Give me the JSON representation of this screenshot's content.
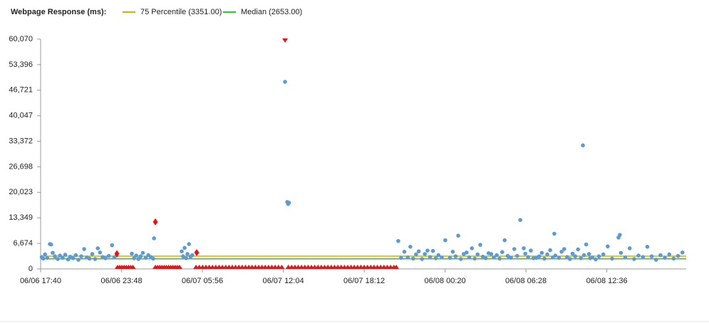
{
  "chart_data": {
    "type": "scatter",
    "title": "Webpage Response (ms):",
    "reference_lines": [
      {
        "label": "75 Percentile (3351.00)",
        "value": 3351,
        "color": "#c9b800"
      },
      {
        "label": "Median (2653.00)",
        "value": 2653,
        "color": "#2ec72e"
      }
    ],
    "xlim": [
      "06/06 17:40",
      "06/08 18:37"
    ],
    "xticks": [
      "06/06 17:40",
      "06/06 23:48",
      "06/07 05:56",
      "06/07 12:04",
      "06/07 18:12",
      "06/08 00:20",
      "06/08 06:28",
      "06/08 12:36"
    ],
    "ylim": [
      0,
      60070
    ],
    "yticks": [
      0,
      {
        "value": 6674,
        "label": "6,674"
      },
      {
        "value": 13349,
        "label": "13,349"
      },
      {
        "value": 20023,
        "label": "20,023"
      },
      {
        "value": 26698,
        "label": "26,698"
      },
      {
        "value": 33372,
        "label": "33,372"
      },
      {
        "value": 40047,
        "label": "40,047"
      },
      {
        "value": 46721,
        "label": "46,721"
      },
      {
        "value": 53396,
        "label": "53,396"
      },
      {
        "value": 60070,
        "label": "60,070"
      }
    ],
    "series": [
      {
        "color": "#5b9bd5",
        "marker": "circle",
        "x": [
          "06/06 17:45",
          "06/06 17:52",
          "06/06 18:00",
          "06/06 18:10",
          "06/06 18:22",
          "06/06 18:28",
          "06/06 18:35",
          "06/06 18:45",
          "06/06 18:58",
          "06/06 19:08",
          "06/06 19:20",
          "06/06 19:32",
          "06/06 19:45",
          "06/06 19:55",
          "06/06 20:08",
          "06/06 20:20",
          "06/06 20:32",
          "06/06 20:45",
          "06/06 20:58",
          "06/06 21:10",
          "06/06 21:22",
          "06/06 21:35",
          "06/06 21:48",
          "06/06 22:00",
          "06/06 22:10",
          "06/06 22:22",
          "06/06 22:35",
          "06/06 22:50",
          "06/06 23:05",
          "06/06 23:15",
          "06/06 23:25",
          "06/07 00:35",
          "06/07 00:45",
          "06/07 00:55",
          "06/07 01:05",
          "06/07 01:15",
          "06/07 01:25",
          "06/07 01:38",
          "06/07 01:50",
          "06/07 02:02",
          "06/07 02:12",
          "06/07 02:16",
          "06/07 04:22",
          "06/07 04:28",
          "06/07 04:35",
          "06/07 04:42",
          "06/07 04:48",
          "06/07 04:55",
          "06/07 05:02",
          "06/07 05:10",
          "06/07 12:12",
          "06/07 12:22",
          "06/07 12:26",
          "06/07 12:30",
          "06/07 20:47",
          "06/07 21:00",
          "06/07 21:15",
          "06/07 21:30",
          "06/07 21:42",
          "06/07 21:55",
          "06/07 22:08",
          "06/07 22:20",
          "06/07 22:35",
          "06/07 22:48",
          "06/07 23:00",
          "06/07 23:12",
          "06/07 23:25",
          "06/07 23:38",
          "06/07 23:50",
          "06/08 00:05",
          "06/08 00:21",
          "06/08 00:42",
          "06/08 00:55",
          "06/08 01:08",
          "06/08 01:20",
          "06/08 01:32",
          "06/08 01:45",
          "06/08 01:58",
          "06/08 02:10",
          "06/08 02:22",
          "06/08 02:35",
          "06/08 02:48",
          "06/08 03:00",
          "06/08 03:12",
          "06/08 03:25",
          "06/08 03:38",
          "06/08 03:50",
          "06/08 04:02",
          "06/08 04:15",
          "06/08 04:28",
          "06/08 04:40",
          "06/08 04:51",
          "06/08 05:05",
          "06/08 05:12",
          "06/08 05:20",
          "06/08 05:35",
          "06/08 05:48",
          "06/08 06:02",
          "06/08 06:18",
          "06/08 06:25",
          "06/08 06:38",
          "06/08 06:50",
          "06/08 07:02",
          "06/08 07:15",
          "06/08 07:28",
          "06/08 07:40",
          "06/08 07:52",
          "06/08 08:05",
          "06/08 08:18",
          "06/08 08:30",
          "06/08 08:37",
          "06/08 08:42",
          "06/08 08:58",
          "06/08 09:10",
          "06/08 09:22",
          "06/08 09:35",
          "06/08 09:48",
          "06/08 10:00",
          "06/08 10:12",
          "06/08 10:25",
          "06/08 10:38",
          "06/08 10:47",
          "06/08 10:52",
          "06/08 11:02",
          "06/08 11:15",
          "06/08 11:20",
          "06/08 11:30",
          "06/08 11:45",
          "06/08 12:00",
          "06/08 12:20",
          "06/08 12:40",
          "06/08 13:00",
          "06/08 13:29",
          "06/08 13:35",
          "06/08 13:40",
          "06/08 14:00",
          "06/08 14:20",
          "06/08 14:40",
          "06/08 15:00",
          "06/08 15:20",
          "06/08 15:40",
          "06/08 16:00",
          "06/08 16:20",
          "06/08 16:40",
          "06/08 17:00",
          "06/08 17:20",
          "06/08 17:40",
          "06/08 18:00",
          "06/08 18:20"
        ],
        "values": [
          3100,
          2700,
          3800,
          2900,
          6500,
          6400,
          4200,
          3300,
          2600,
          3500,
          2900,
          3700,
          2500,
          3200,
          2800,
          3600,
          2400,
          3300,
          5200,
          3000,
          2700,
          3900,
          2600,
          5400,
          4300,
          3100,
          2800,
          3400,
          6200,
          3000,
          3500,
          4000,
          2800,
          3500,
          2600,
          3300,
          4200,
          2900,
          3600,
          3100,
          2700,
          8000,
          4600,
          3300,
          5500,
          2800,
          3900,
          6500,
          3200,
          3600,
          48900,
          17500,
          17000,
          17300,
          7300,
          2900,
          4500,
          3000,
          5800,
          2700,
          3800,
          4600,
          2600,
          3900,
          4800,
          3100,
          4700,
          2800,
          3600,
          3000,
          7500,
          2900,
          4500,
          3300,
          8700,
          2600,
          3900,
          4300,
          3000,
          5400,
          2700,
          3800,
          6300,
          3200,
          2800,
          4100,
          3900,
          3000,
          3600,
          2700,
          4400,
          7500,
          3400,
          3000,
          2900,
          5200,
          3400,
          12800,
          5400,
          4000,
          3100,
          4800,
          2800,
          2900,
          3300,
          4200,
          2700,
          3800,
          4900,
          3000,
          9200,
          3500,
          2900,
          4500,
          5200,
          3100,
          2600,
          4000,
          3300,
          5100,
          2800,
          32300,
          3600,
          6400,
          3900,
          2800,
          3000,
          2500,
          3300,
          3800,
          5900,
          2700,
          8200,
          8900,
          4200,
          3000,
          5400,
          2600,
          3500,
          3100,
          5800,
          3300,
          2400,
          3600,
          2900,
          3800,
          2700,
          3400,
          4300
        ]
      },
      {
        "color": "#ee1111",
        "marker": "triangle",
        "x": [
          "06/06 23:30",
          "06/06 23:40",
          "06/06 23:50",
          "06/07 00:00",
          "06/07 00:10",
          "06/07 00:20",
          "06/07 00:30",
          "06/07 00:40",
          "06/07 02:22",
          "06/07 02:32",
          "06/07 02:42",
          "06/07 02:52",
          "06/07 03:02",
          "06/07 03:12",
          "06/07 03:22",
          "06/07 03:32",
          "06/07 03:42",
          "06/07 03:52",
          "06/07 04:02",
          "06/07 04:12",
          "06/07 05:27",
          "06/07 05:42",
          "06/07 05:57",
          "06/07 06:12",
          "06/07 06:27",
          "06/07 06:42",
          "06/07 06:57",
          "06/07 07:12",
          "06/07 07:27",
          "06/07 07:42",
          "06/07 07:57",
          "06/07 08:12",
          "06/07 08:27",
          "06/07 08:42",
          "06/07 08:57",
          "06/07 09:12",
          "06/07 09:27",
          "06/07 09:42",
          "06/07 09:57",
          "06/07 10:12",
          "06/07 10:27",
          "06/07 10:42",
          "06/07 10:57",
          "06/07 11:12",
          "06/07 11:27",
          "06/07 11:42",
          "06/07 11:57",
          "06/07 12:27",
          "06/07 12:42",
          "06/07 12:57",
          "06/07 13:12",
          "06/07 13:27",
          "06/07 13:42",
          "06/07 13:57",
          "06/07 14:12",
          "06/07 14:27",
          "06/07 14:42",
          "06/07 14:57",
          "06/07 15:12",
          "06/07 15:27",
          "06/07 15:42",
          "06/07 15:57",
          "06/07 16:12",
          "06/07 16:27",
          "06/07 16:42",
          "06/07 16:57",
          "06/07 17:12",
          "06/07 17:27",
          "06/07 17:42",
          "06/07 17:57",
          "06/07 18:12",
          "06/07 18:27",
          "06/07 18:42",
          "06/07 18:57",
          "06/07 19:12",
          "06/07 19:27",
          "06/07 19:42",
          "06/07 19:57",
          "06/07 20:12",
          "06/07 20:27",
          "06/07 20:38"
        ],
        "values": [
          0,
          0,
          0,
          0,
          0,
          0,
          0,
          0,
          0,
          0,
          0,
          0,
          0,
          0,
          0,
          0,
          0,
          0,
          0,
          0,
          0,
          0,
          0,
          0,
          0,
          0,
          0,
          0,
          0,
          0,
          0,
          0,
          0,
          0,
          0,
          0,
          0,
          0,
          0,
          0,
          0,
          0,
          0,
          0,
          0,
          0,
          0,
          0,
          0,
          0,
          0,
          0,
          0,
          0,
          0,
          0,
          0,
          0,
          0,
          0,
          0,
          0,
          0,
          0,
          0,
          0,
          0,
          0,
          0,
          0,
          0,
          0,
          0,
          0,
          0,
          0,
          0,
          0,
          0,
          0,
          0
        ]
      },
      {
        "color": "#ee1111",
        "marker": "triangle-down",
        "x": [
          "06/07 12:12"
        ],
        "values": [
          60070
        ]
      },
      {
        "color": "#ee1111",
        "marker": "diamond",
        "x": [
          "06/06 23:27",
          "06/07 02:22",
          "06/07 05:30"
        ],
        "values": [
          4000,
          12300,
          4280
        ]
      }
    ]
  }
}
